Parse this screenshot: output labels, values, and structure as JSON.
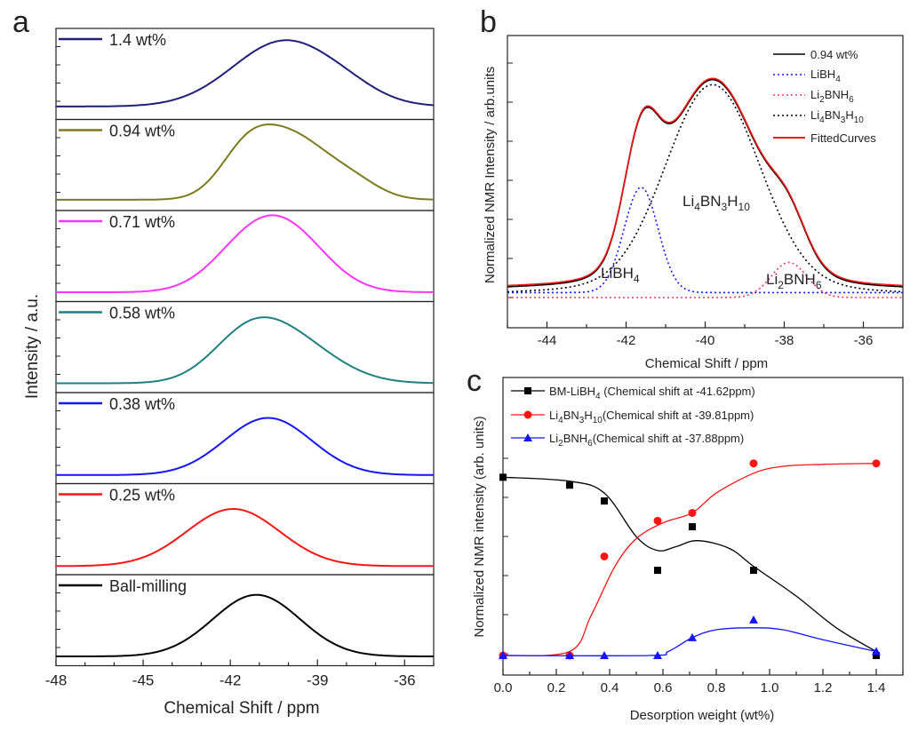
{
  "panels": {
    "a": {
      "letter": "a",
      "xlabel": "Chemical Shift / ppm",
      "ylabel": "Intensity / a.u.",
      "xticks": [
        "-48",
        "-45",
        "-42",
        "-39",
        "-36"
      ],
      "samples": [
        {
          "label": "1.4 wt%",
          "color": "#1f1f7a"
        },
        {
          "label": "0.94 wt%",
          "color": "#7d7a1e"
        },
        {
          "label": "0.71 wt%",
          "color": "#ff33ff"
        },
        {
          "label": "0.58 wt%",
          "color": "#1e8080"
        },
        {
          "label": "0.38 wt%",
          "color": "#1414ff"
        },
        {
          "label": "0.25 wt%",
          "color": "#ff1414"
        },
        {
          "label": "Ball-milling",
          "color": "#000000"
        }
      ]
    },
    "b": {
      "letter": "b",
      "xlabel": "Chemical Shift / ppm",
      "ylabel": "Normalized NMR Intensity / arb.units",
      "xticks": [
        "-44",
        "-42",
        "-40",
        "-38",
        "-36"
      ],
      "legend": {
        "measured": "0.94 wt%",
        "libh4_pre": "LiBH",
        "libh4_sub": "4",
        "li2_pre": "Li",
        "li2_sub1": "2",
        "li2_mid": "BNH",
        "li2_sub2": "6",
        "li4_pre": "Li",
        "li4_sub1": "4",
        "li4_mid": "BN",
        "li4_sub2": "3",
        "li4_mid2": "H",
        "li4_sub3": "10",
        "fitted": "FittedCurves"
      },
      "annotations": {
        "li4_pre": "Li",
        "li4_s1": "4",
        "li4_mid": "BN",
        "li4_s2": "3",
        "li4_mid2": "H",
        "li4_s3": "10",
        "libh4_pre": "LiBH",
        "libh4_s": "4",
        "li2_pre": "Li",
        "li2_s1": "2",
        "li2_mid": "BNH",
        "li2_s2": "6"
      },
      "colors": {
        "measured": "#000000",
        "libh4": "#1414ff",
        "li2bnh6": "#ff3366",
        "li4bn3h10": "#000000",
        "fitted": "#ff1414"
      }
    },
    "c": {
      "letter": "c",
      "xlabel": "Desorption weight (wt%)",
      "ylabel": "Normalized NMR intensity (arb. units)",
      "xticks": [
        "0.0",
        "0.2",
        "0.4",
        "0.6",
        "0.8",
        "1.0",
        "1.2",
        "1.4"
      ],
      "legend": {
        "s1_pre": "BM-LiBH",
        "s1_sub": "4",
        "s1_post": " (Chemical shift at -41.62ppm)",
        "s2_pre": "Li",
        "s2_s1": "4",
        "s2_mid": "BN",
        "s2_s2": "3",
        "s2_mid2": "H",
        "s2_s3": "10",
        "s2_post": "(Chemical shift at -39.81ppm)",
        "s3_pre": "Li",
        "s3_s1": "2",
        "s3_mid": "BNH",
        "s3_s2": "6",
        "s3_post": "(Chemical shift at -37.88ppm)"
      }
    }
  },
  "chart_data": [
    {
      "type": "line",
      "title": "a",
      "xlabel": "Chemical Shift / ppm",
      "ylabel": "Intensity / a.u.",
      "xlim": [
        -48,
        -35
      ],
      "note": "stacked 1H NMR spectra, arbitrary intensity; each series given as peak components (center ppm, width ppm, relative amplitude)",
      "series": [
        {
          "name": "1.4 wt%",
          "color": "#1f1f7a",
          "baseline": 0.08,
          "components": [
            [
              -40.1,
              1.8,
              0.9
            ],
            [
              -37.8,
              1.0,
              0.06
            ]
          ]
        },
        {
          "name": "0.94 wt%",
          "color": "#7d7a1e",
          "baseline": 0.05,
          "components": [
            [
              -41.5,
              0.9,
              0.48
            ],
            [
              -39.9,
              1.3,
              0.85
            ],
            [
              -37.7,
              0.9,
              0.18
            ]
          ]
        },
        {
          "name": "0.71 wt%",
          "color": "#ff33ff",
          "baseline": 0.03,
          "components": [
            [
              -41.3,
              1.3,
              0.62
            ],
            [
              -39.8,
              1.3,
              0.62
            ]
          ]
        },
        {
          "name": "0.58 wt%",
          "color": "#1e8080",
          "baseline": 0.03,
          "components": [
            [
              -41.5,
              1.2,
              0.4
            ],
            [
              -40.1,
              1.6,
              0.62
            ]
          ]
        },
        {
          "name": "0.38 wt%",
          "color": "#1414ff",
          "baseline": 0.02,
          "components": [
            [
              -40.7,
              1.5,
              0.78
            ]
          ]
        },
        {
          "name": "0.25 wt%",
          "color": "#ff1414",
          "baseline": 0.02,
          "components": [
            [
              -41.9,
              1.6,
              0.78
            ]
          ]
        },
        {
          "name": "Ball-milling",
          "color": "#000000",
          "baseline": 0.03,
          "components": [
            [
              -41.1,
              1.5,
              0.84
            ]
          ]
        }
      ]
    },
    {
      "type": "line",
      "title": "b",
      "xlabel": "Chemical Shift / ppm",
      "ylabel": "Normalized NMR Intensity / arb.units",
      "xlim": [
        -45,
        -35
      ],
      "ylim": [
        0,
        1.1
      ],
      "series": [
        {
          "name": "0.94 wt%",
          "style": "solid",
          "color": "#000000",
          "components": [
            [
              -41.62,
              0.43,
              0.42
            ],
            [
              -39.81,
              1.18,
              0.8
            ],
            [
              -37.88,
              0.45,
              0.14
            ]
          ]
        },
        {
          "name": "LiBH4",
          "style": "dotted",
          "color": "#1414ff",
          "center": -41.62,
          "width": 0.43,
          "amplitude": 0.42
        },
        {
          "name": "Li2BNH6",
          "style": "dotted",
          "color": "#ff3366",
          "center": -37.88,
          "width": 0.45,
          "amplitude": 0.14
        },
        {
          "name": "Li4BN3H10",
          "style": "dotted",
          "color": "#000000",
          "center": -39.81,
          "width": 1.18,
          "amplitude": 0.8
        },
        {
          "name": "FittedCurves",
          "style": "solid",
          "color": "#ff1414",
          "components": [
            [
              -41.62,
              0.43,
              0.42
            ],
            [
              -39.81,
              1.18,
              0.8
            ],
            [
              -37.88,
              0.45,
              0.14
            ]
          ]
        }
      ]
    },
    {
      "type": "scatter",
      "title": "c",
      "xlabel": "Desorption weight (wt%)",
      "ylabel": "Normalized NMR intensity (arb. units)",
      "xlim": [
        0,
        1.5
      ],
      "ylim": [
        0,
        1.05
      ],
      "series": [
        {
          "name": "BM-LiBH4 (Chemical shift at -41.62ppm)",
          "color": "#000000",
          "marker": "square",
          "x": [
            0,
            0.25,
            0.38,
            0.58,
            0.71,
            0.94,
            1.4
          ],
          "y": [
            0.9,
            0.86,
            0.78,
            0.43,
            0.65,
            0.43,
            0.0
          ],
          "curve": [
            [
              0,
              0.9
            ],
            [
              0.25,
              0.88
            ],
            [
              0.38,
              0.82
            ],
            [
              0.5,
              0.6
            ],
            [
              0.58,
              0.53
            ],
            [
              0.65,
              0.55
            ],
            [
              0.73,
              0.58
            ],
            [
              0.85,
              0.54
            ],
            [
              0.94,
              0.45
            ],
            [
              1.1,
              0.3
            ],
            [
              1.25,
              0.14
            ],
            [
              1.4,
              0.02
            ]
          ]
        },
        {
          "name": "Li4BN3H10(Chemical shift at -39.81ppm)",
          "color": "#ff1414",
          "marker": "circle",
          "x": [
            0,
            0.25,
            0.38,
            0.58,
            0.71,
            0.94,
            1.4
          ],
          "y": [
            0.0,
            0.0,
            0.5,
            0.68,
            0.72,
            0.97,
            0.97
          ],
          "curve": [
            [
              0,
              0.0
            ],
            [
              0.25,
              0.02
            ],
            [
              0.33,
              0.2
            ],
            [
              0.42,
              0.45
            ],
            [
              0.5,
              0.59
            ],
            [
              0.6,
              0.67
            ],
            [
              0.71,
              0.72
            ],
            [
              0.8,
              0.82
            ],
            [
              0.94,
              0.92
            ],
            [
              1.05,
              0.955
            ],
            [
              1.2,
              0.965
            ],
            [
              1.4,
              0.97
            ]
          ]
        },
        {
          "name": "Li2BNH6(Chemical shift at -37.88ppm)",
          "color": "#1414ff",
          "marker": "triangle",
          "x": [
            0,
            0.25,
            0.38,
            0.58,
            0.71,
            0.94,
            1.4
          ],
          "y": [
            0.0,
            0.0,
            0.0,
            0.0,
            0.09,
            0.18,
            0.02
          ],
          "curve": [
            [
              0,
              0.0
            ],
            [
              0.55,
              0.0
            ],
            [
              0.62,
              0.02
            ],
            [
              0.71,
              0.09
            ],
            [
              0.8,
              0.13
            ],
            [
              0.94,
              0.14
            ],
            [
              1.05,
              0.13
            ],
            [
              1.2,
              0.08
            ],
            [
              1.4,
              0.02
            ]
          ]
        }
      ]
    }
  ]
}
